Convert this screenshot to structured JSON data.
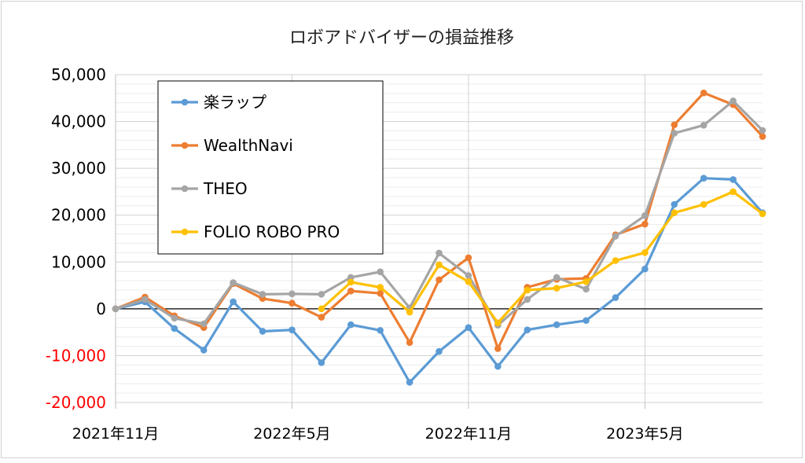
{
  "chart_data": {
    "type": "line",
    "title": "ロボアドバイザーの損益推移",
    "xlabel": "",
    "ylabel": "",
    "ylim": [
      -20000,
      50000
    ],
    "y_ticks": [
      {
        "value": 50000,
        "label": "50,000"
      },
      {
        "value": 40000,
        "label": "40,000"
      },
      {
        "value": 30000,
        "label": "30,000"
      },
      {
        "value": 20000,
        "label": "20,000"
      },
      {
        "value": 10000,
        "label": "10,000"
      },
      {
        "value": 0,
        "label": "0"
      },
      {
        "value": -10000,
        "label": "-10,000"
      },
      {
        "value": -20000,
        "label": "-20,000"
      }
    ],
    "x_ticks": [
      {
        "index": 0,
        "label": "2021年11月"
      },
      {
        "index": 6,
        "label": "2022年5月"
      },
      {
        "index": 12,
        "label": "2022年11月"
      },
      {
        "index": 18,
        "label": "2023年5月"
      }
    ],
    "point_count": 23,
    "grid": "both",
    "legend_position": "top-left",
    "series": [
      {
        "name": "楽ラップ",
        "color": "#5b9bd5",
        "values": [
          0,
          1500,
          -4200,
          -8800,
          1500,
          -4800,
          -4500,
          -11500,
          -3400,
          -4600,
          -15700,
          -9100,
          -4000,
          -12300,
          -4500,
          -3400,
          -2500,
          2400,
          8500,
          22300,
          27900,
          27600,
          20500
        ]
      },
      {
        "name": "WealthNavi",
        "color": "#ed7d31",
        "values": [
          0,
          2500,
          -1500,
          -4000,
          5400,
          2200,
          1200,
          -1800,
          3800,
          3300,
          -7200,
          6200,
          10900,
          -8500,
          4600,
          6300,
          6500,
          15800,
          18100,
          39300,
          46100,
          43600,
          36800
        ]
      },
      {
        "name": "THEO",
        "color": "#a5a5a5",
        "values": [
          0,
          2000,
          -2000,
          -3200,
          5600,
          3100,
          3200,
          3100,
          6700,
          7900,
          200,
          11900,
          7100,
          -3500,
          2000,
          6700,
          4200,
          15500,
          19900,
          37500,
          39200,
          44400,
          38100
        ]
      },
      {
        "name": "FOLIO ROBO PRO",
        "color": "#ffc000",
        "values": [
          null,
          null,
          null,
          null,
          null,
          null,
          null,
          0,
          5700,
          4600,
          -700,
          9400,
          5800,
          -3000,
          4000,
          4400,
          5800,
          10300,
          12000,
          20500,
          22300,
          25000,
          20300
        ]
      }
    ]
  }
}
